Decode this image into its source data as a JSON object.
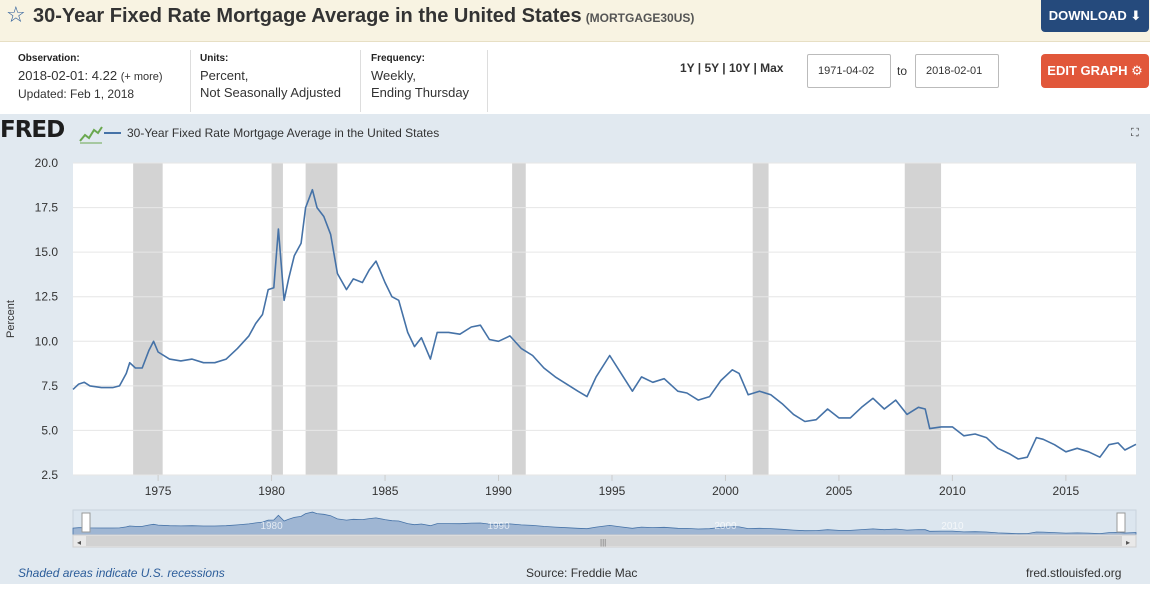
{
  "header": {
    "title": "30-Year Fixed Rate Mortgage Average in the United States",
    "series_id": "(MORTGAGE30US)",
    "download_label": "DOWNLOAD ⬇"
  },
  "meta": {
    "observation_label": "Observation:",
    "observation_date": "2018-02-01:",
    "observation_value": "4.22",
    "observation_more": "(+ more)",
    "updated": "Updated: Feb 1, 2018",
    "units_label": "Units:",
    "units_line1": "Percent,",
    "units_line2": "Not Seasonally Adjusted",
    "frequency_label": "Frequency:",
    "frequency_line1": "Weekly,",
    "frequency_line2": "Ending Thursday"
  },
  "controls": {
    "ranges": "1Y | 5Y | 10Y | Max",
    "date_from": "1971-04-02",
    "to_label": "to",
    "date_to": "2018-02-01",
    "edit_label": "EDIT GRAPH ⚙"
  },
  "logo": "FRED",
  "footer": {
    "recession_note": "Shaded areas indicate U.S. recessions",
    "source": "Source: Freddie Mac",
    "site": "fred.stlouisfed.org"
  },
  "colors": {
    "line": "#4572a7",
    "recession": "#d3d3d3",
    "panel": "#e1e9f0",
    "download_button": "#254a7c",
    "edit_button": "#e1573a"
  },
  "icons": {
    "favorite": "star-icon",
    "expand": "expand-icon"
  },
  "chart_data": {
    "type": "line",
    "title": "30-Year Fixed Rate Mortgage Average in the United States",
    "xlabel": "",
    "ylabel": "Percent",
    "xlim": [
      1971.25,
      2018.09
    ],
    "ylim": [
      2.5,
      20.0
    ],
    "yticks": [
      "20.0",
      "17.5",
      "15.0",
      "12.5",
      "10.0",
      "7.5",
      "5.0",
      "2.5"
    ],
    "xticks": [
      "1975",
      "1980",
      "1985",
      "1990",
      "1995",
      "2000",
      "2005",
      "2010",
      "2015"
    ],
    "navigator_ticks": [
      "1980",
      "1990",
      "2000",
      "2010"
    ],
    "grid": "horizontal",
    "recessions": [
      [
        1973.9,
        1975.2
      ],
      [
        1980.0,
        1980.5
      ],
      [
        1981.5,
        1982.9
      ],
      [
        1990.6,
        1991.2
      ],
      [
        2001.2,
        2001.9
      ],
      [
        2007.9,
        2009.5
      ]
    ],
    "series": [
      {
        "name": "30-Year Fixed Rate Mortgage Average in the United States",
        "x": [
          1971.25,
          1971.5,
          1971.75,
          1972.0,
          1972.5,
          1973.0,
          1973.3,
          1973.6,
          1973.75,
          1974.0,
          1974.3,
          1974.6,
          1974.8,
          1975.0,
          1975.5,
          1976.0,
          1976.5,
          1977.0,
          1977.5,
          1978.0,
          1978.5,
          1979.0,
          1979.3,
          1979.6,
          1979.85,
          1980.1,
          1980.3,
          1980.55,
          1980.75,
          1981.0,
          1981.3,
          1981.5,
          1981.8,
          1982.0,
          1982.3,
          1982.6,
          1982.9,
          1983.3,
          1983.6,
          1984.0,
          1984.3,
          1984.6,
          1985.0,
          1985.3,
          1985.6,
          1986.0,
          1986.3,
          1986.6,
          1987.0,
          1987.3,
          1987.8,
          1988.3,
          1988.8,
          1989.2,
          1989.6,
          1990.0,
          1990.5,
          1991.0,
          1991.5,
          1992.0,
          1992.5,
          1993.0,
          1993.5,
          1993.9,
          1994.3,
          1994.9,
          1995.3,
          1995.9,
          1996.3,
          1996.8,
          1997.3,
          1997.9,
          1998.3,
          1998.8,
          1999.3,
          1999.8,
          2000.3,
          2000.6,
          2001.0,
          2001.5,
          2002.0,
          2002.5,
          2003.0,
          2003.5,
          2004.0,
          2004.5,
          2005.0,
          2005.5,
          2006.0,
          2006.5,
          2007.0,
          2007.5,
          2008.0,
          2008.5,
          2008.8,
          2009.0,
          2009.5,
          2010.0,
          2010.5,
          2011.0,
          2011.5,
          2012.0,
          2012.5,
          2012.9,
          2013.3,
          2013.7,
          2014.0,
          2014.5,
          2015.0,
          2015.5,
          2016.0,
          2016.5,
          2016.9,
          2017.3,
          2017.6,
          2018.09
        ],
        "values": [
          7.3,
          7.6,
          7.7,
          7.5,
          7.4,
          7.4,
          7.5,
          8.2,
          8.8,
          8.5,
          8.5,
          9.5,
          10.0,
          9.4,
          9.0,
          8.9,
          9.0,
          8.8,
          8.8,
          9.0,
          9.6,
          10.3,
          11.0,
          11.5,
          12.9,
          13.0,
          16.3,
          12.3,
          13.5,
          14.8,
          15.5,
          17.5,
          18.5,
          17.5,
          17.0,
          16.0,
          13.8,
          12.9,
          13.5,
          13.3,
          14.0,
          14.5,
          13.3,
          12.5,
          12.3,
          10.5,
          9.7,
          10.2,
          9.0,
          10.5,
          10.5,
          10.4,
          10.8,
          10.9,
          10.1,
          10.0,
          10.3,
          9.6,
          9.2,
          8.5,
          8.0,
          7.6,
          7.2,
          6.9,
          8.0,
          9.2,
          8.4,
          7.2,
          8.0,
          7.7,
          7.9,
          7.2,
          7.1,
          6.7,
          6.9,
          7.8,
          8.4,
          8.2,
          7.0,
          7.2,
          7.0,
          6.5,
          5.9,
          5.5,
          5.6,
          6.2,
          5.7,
          5.7,
          6.3,
          6.8,
          6.2,
          6.7,
          5.9,
          6.3,
          6.2,
          5.1,
          5.2,
          5.2,
          4.7,
          4.8,
          4.6,
          4.0,
          3.7,
          3.4,
          3.5,
          4.6,
          4.5,
          4.2,
          3.8,
          4.0,
          3.8,
          3.5,
          4.2,
          4.3,
          3.9,
          4.22
        ]
      }
    ]
  }
}
